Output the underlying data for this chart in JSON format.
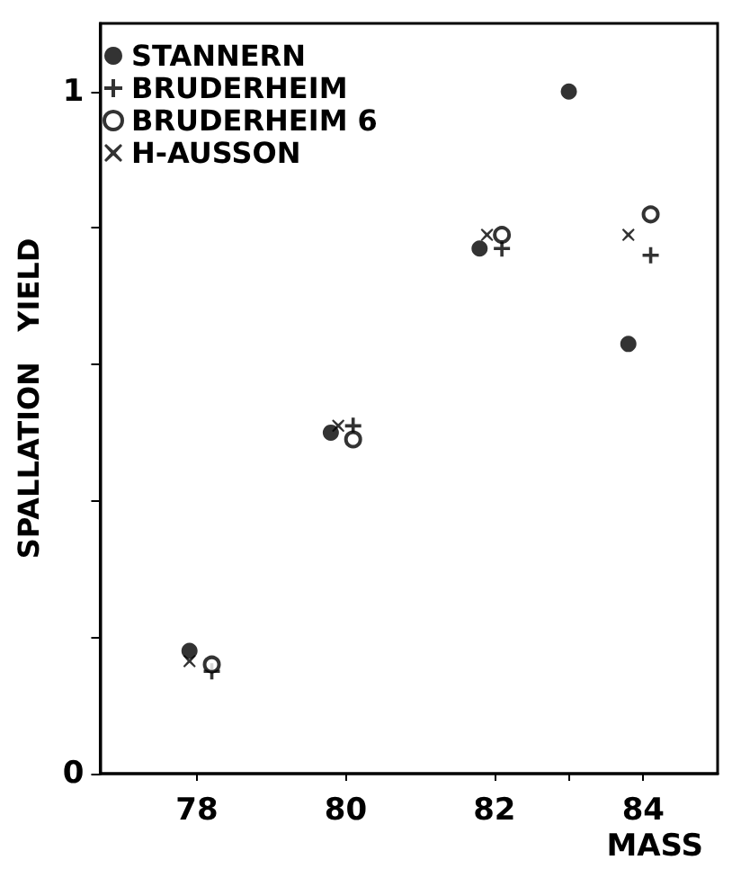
{
  "chart_data": {
    "type": "scatter",
    "xlabel": "MASS",
    "ylabel": "SPALLATION   YIELD",
    "xlim": [
      76.7,
      85
    ],
    "xticks": [
      78,
      80,
      82,
      {
        "value": 83,
        "label": null
      },
      84
    ],
    "ylim": [
      0,
      1.1
    ],
    "yticks": [
      0,
      {
        "value": 0.2,
        "label": null
      },
      {
        "value": 0.4,
        "label": null
      },
      {
        "value": 0.6,
        "label": null
      },
      {
        "value": 0.8,
        "label": null
      },
      1
    ],
    "grid": false,
    "legend": "top left",
    "series": [
      {
        "name": "STANNERN",
        "color": "#000000",
        "marker": "circle",
        "x": [
          77.9,
          79.8,
          81.8,
          83.0,
          83.8
        ],
        "values": [
          0.18,
          0.5,
          0.77,
          1.0,
          0.63
        ]
      },
      {
        "name": "BRUDERHEIM",
        "color": "#000000",
        "marker": "plus",
        "x": [
          78.2,
          80.1,
          82.1,
          84.1
        ],
        "values": [
          0.15,
          0.51,
          0.77,
          0.76
        ]
      },
      {
        "name": "BRUDERHEIM 6",
        "color": "#000000",
        "marker": "circle-open",
        "x": [
          78.2,
          80.1,
          82.1,
          84.1
        ],
        "values": [
          0.16,
          0.49,
          0.79,
          0.82
        ]
      },
      {
        "name": "H-AUSSON",
        "color": "#000000",
        "marker": "cross",
        "x": [
          77.9,
          79.9,
          81.9,
          83.8
        ],
        "values": [
          0.165,
          0.51,
          0.79,
          0.79
        ]
      }
    ]
  }
}
